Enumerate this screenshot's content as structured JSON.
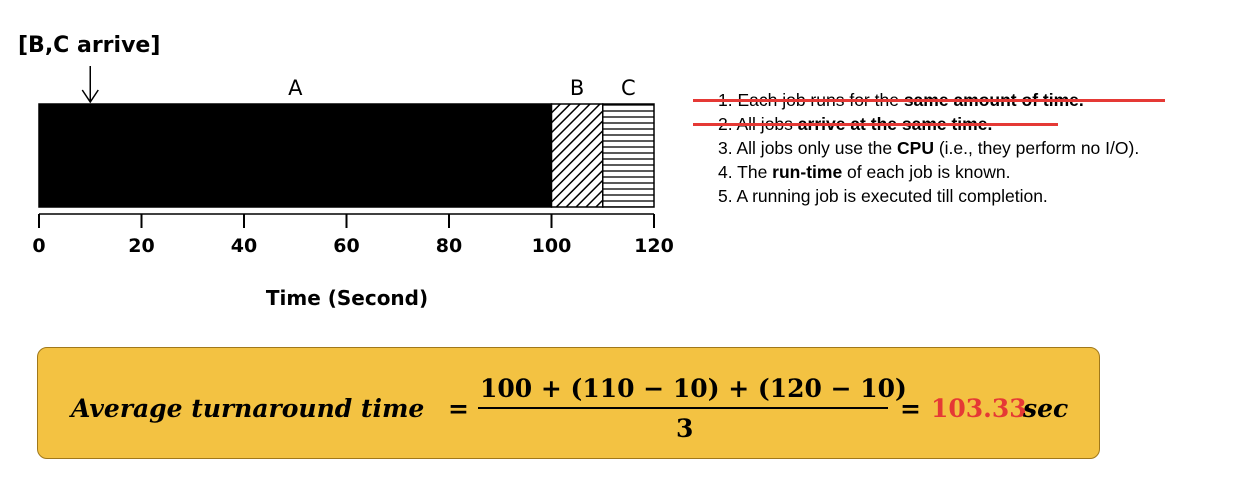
{
  "chart": {
    "arrival_label": "[B,C arrive]",
    "arrival_time": 10,
    "x_axis_label": "Time (Second)",
    "ticks": [
      "0",
      "20",
      "40",
      "60",
      "80",
      "100",
      "120"
    ],
    "xlim": [
      0,
      120
    ],
    "jobs": [
      {
        "name": "A",
        "start": 0,
        "end": 100,
        "fill": "solid"
      },
      {
        "name": "B",
        "start": 100,
        "end": 110,
        "fill": "diagonal"
      },
      {
        "name": "C",
        "start": 110,
        "end": 120,
        "fill": "horizontal"
      }
    ],
    "colors": {
      "bar": "#000000"
    }
  },
  "assumptions": [
    {
      "num": "1.",
      "parts": [
        {
          "t": "Each job runs for the ",
          "b": false
        },
        {
          "t": "same amount of time.",
          "b": true
        }
      ],
      "struck": true
    },
    {
      "num": "2.",
      "parts": [
        {
          "t": "All jobs ",
          "b": false
        },
        {
          "t": "arrive at the same time.",
          "b": true
        }
      ],
      "struck": true
    },
    {
      "num": "3.",
      "parts": [
        {
          "t": "All jobs only use the ",
          "b": false
        },
        {
          "t": "CPU",
          "b": true
        },
        {
          "t": " (i.e., they perform no I/O).",
          "b": false
        }
      ],
      "struck": false
    },
    {
      "num": "4.",
      "parts": [
        {
          "t": "The ",
          "b": false
        },
        {
          "t": "run-time",
          "b": true
        },
        {
          "t": " of each job is known.",
          "b": false
        }
      ],
      "struck": false
    },
    {
      "num": "5.",
      "parts": [
        {
          "t": "A running job is executed till completion.",
          "b": false
        }
      ],
      "struck": false
    }
  ],
  "formula": {
    "lhs": "Average turnaround time",
    "eq": "=",
    "numerator": "100 + (110 − 10) + (120 − 10)",
    "denominator": "3",
    "eq2": "=",
    "result": "103.33",
    "unit": "sec",
    "colors": {
      "box": "#f3c242",
      "result": "#e53935",
      "strike": "#e53935"
    }
  }
}
